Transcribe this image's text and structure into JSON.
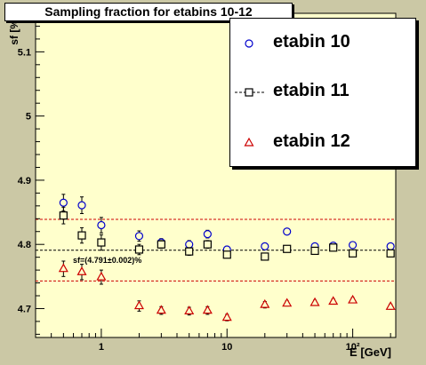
{
  "title": "Sampling fraction for etabins 10-12",
  "chart_data": {
    "type": "scatter",
    "title": "Sampling fraction for etabins 10-12",
    "xlabel": "E [GeV]",
    "ylabel": "sf [%]",
    "xscale": "log",
    "xlim": [
      0.3,
      220
    ],
    "ylim": [
      4.655,
      5.16
    ],
    "x_ticks": [
      {
        "value": 1,
        "label": "1"
      },
      {
        "value": 10,
        "label": "10"
      },
      {
        "value": 100,
        "label": "10²"
      }
    ],
    "y_ticks": [
      4.7,
      4.8,
      4.9,
      5.0,
      5.1
    ],
    "y_tick_labels": [
      "4.7",
      "4.8",
      "4.9",
      "5",
      "5.1"
    ],
    "grid": false,
    "legend_position": "top-right",
    "series": [
      {
        "name": "etabin 10",
        "marker": "circle",
        "color": "#0000cc",
        "points": [
          {
            "x": 0.5,
            "y": 4.865,
            "err": 0.013
          },
          {
            "x": 0.7,
            "y": 4.861,
            "err": 0.013
          },
          {
            "x": 1.0,
            "y": 4.83,
            "err": 0.012
          },
          {
            "x": 2.0,
            "y": 4.813,
            "err": 0.008
          },
          {
            "x": 3.0,
            "y": 4.803,
            "err": 0.006
          },
          {
            "x": 5.0,
            "y": 4.8,
            "err": 0.006
          },
          {
            "x": 7.0,
            "y": 4.816,
            "err": 0.006
          },
          {
            "x": 10.0,
            "y": 4.792,
            "err": 0.005
          },
          {
            "x": 20.0,
            "y": 4.797,
            "err": 0.005
          },
          {
            "x": 30.0,
            "y": 4.82,
            "err": 0.004
          },
          {
            "x": 50.0,
            "y": 4.797,
            "err": 0.004
          },
          {
            "x": 70.0,
            "y": 4.798,
            "err": 0.004
          },
          {
            "x": 100.0,
            "y": 4.799,
            "err": 0.004
          },
          {
            "x": 200.0,
            "y": 4.797,
            "err": 0.004
          }
        ]
      },
      {
        "name": "etabin 11",
        "marker": "square",
        "color": "#000000",
        "points": [
          {
            "x": 0.5,
            "y": 4.845,
            "err": 0.013
          },
          {
            "x": 0.7,
            "y": 4.814,
            "err": 0.012
          },
          {
            "x": 1.0,
            "y": 4.803,
            "err": 0.012
          },
          {
            "x": 2.0,
            "y": 4.792,
            "err": 0.008
          },
          {
            "x": 3.0,
            "y": 4.8,
            "err": 0.006
          },
          {
            "x": 5.0,
            "y": 4.789,
            "err": 0.006
          },
          {
            "x": 7.0,
            "y": 4.8,
            "err": 0.006
          },
          {
            "x": 10.0,
            "y": 4.784,
            "err": 0.005
          },
          {
            "x": 20.0,
            "y": 4.781,
            "err": 0.005
          },
          {
            "x": 30.0,
            "y": 4.793,
            "err": 0.004
          },
          {
            "x": 50.0,
            "y": 4.79,
            "err": 0.004
          },
          {
            "x": 70.0,
            "y": 4.795,
            "err": 0.004
          },
          {
            "x": 100.0,
            "y": 4.786,
            "err": 0.004
          },
          {
            "x": 200.0,
            "y": 4.786,
            "err": 0.004
          }
        ]
      },
      {
        "name": "etabin 12",
        "marker": "triangle",
        "color": "#cc0000",
        "points": [
          {
            "x": 0.5,
            "y": 4.762,
            "err": 0.012
          },
          {
            "x": 0.7,
            "y": 4.757,
            "err": 0.012
          },
          {
            "x": 1.0,
            "y": 4.749,
            "err": 0.011
          },
          {
            "x": 2.0,
            "y": 4.704,
            "err": 0.008
          },
          {
            "x": 3.0,
            "y": 4.697,
            "err": 0.006
          },
          {
            "x": 5.0,
            "y": 4.696,
            "err": 0.006
          },
          {
            "x": 7.0,
            "y": 4.697,
            "err": 0.006
          },
          {
            "x": 10.0,
            "y": 4.686,
            "err": 0.005
          },
          {
            "x": 20.0,
            "y": 4.706,
            "err": 0.005
          },
          {
            "x": 30.0,
            "y": 4.708,
            "err": 0.004
          },
          {
            "x": 50.0,
            "y": 4.709,
            "err": 0.004
          },
          {
            "x": 70.0,
            "y": 4.711,
            "err": 0.004
          },
          {
            "x": 100.0,
            "y": 4.713,
            "err": 0.004
          },
          {
            "x": 200.0,
            "y": 4.703,
            "err": 0.004
          }
        ]
      }
    ],
    "fit": {
      "label": "sf=(4.791±0.002)%",
      "value": 4.791,
      "band_upper": 4.839,
      "band_lower": 4.743,
      "line_color": "#000000",
      "band_color": "#cc0000"
    }
  }
}
